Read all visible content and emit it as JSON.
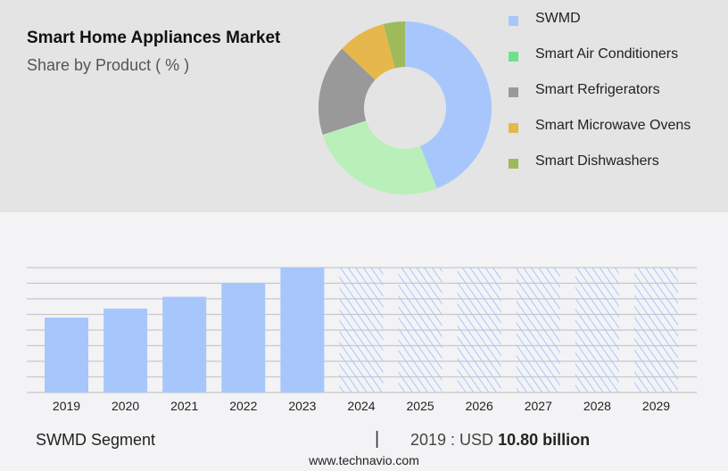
{
  "header": {
    "title": "Smart Home Appliances Market",
    "subtitle": "Share by Product ( % )"
  },
  "chart_data": [
    {
      "type": "pie",
      "donut": true,
      "title": "Smart Home Appliances Market",
      "subtitle": "Share by Product ( % )",
      "legend_position": "right",
      "categories": [
        "SWMD",
        "Smart Air Conditioners",
        "Smart Refrigerators",
        "Smart Microwave Ovens",
        "Smart Dishwashers"
      ],
      "values": [
        44,
        26,
        17,
        9,
        4
      ],
      "legend_colors": [
        "#a7c7fc",
        "#6ee08e",
        "#999999",
        "#e6b84b",
        "#9fba5a"
      ],
      "slice_colors": [
        "#a7c7fc",
        "#b9efb9",
        "#999999",
        "#e6b84b",
        "#9fba5a"
      ]
    },
    {
      "type": "bar",
      "grid": true,
      "series_name": "SWMD Segment",
      "categories": [
        "2019",
        "2020",
        "2021",
        "2022",
        "2023",
        "2024",
        "2025",
        "2026",
        "2027",
        "2028",
        "2029"
      ],
      "values": [
        10.8,
        12.1,
        13.8,
        15.8,
        18.0,
        null,
        null,
        null,
        null,
        null,
        null
      ],
      "forecast_hatched": [
        "2024",
        "2025",
        "2026",
        "2027",
        "2028",
        "2029"
      ],
      "ylim": [
        0,
        18
      ],
      "color": "#a7c7fc"
    }
  ],
  "footer": {
    "segment": "SWMD Segment",
    "separator": "|",
    "value_prefix": "2019 : USD ",
    "value_bold": "10.80 billion",
    "url": "www.technavio.com"
  }
}
